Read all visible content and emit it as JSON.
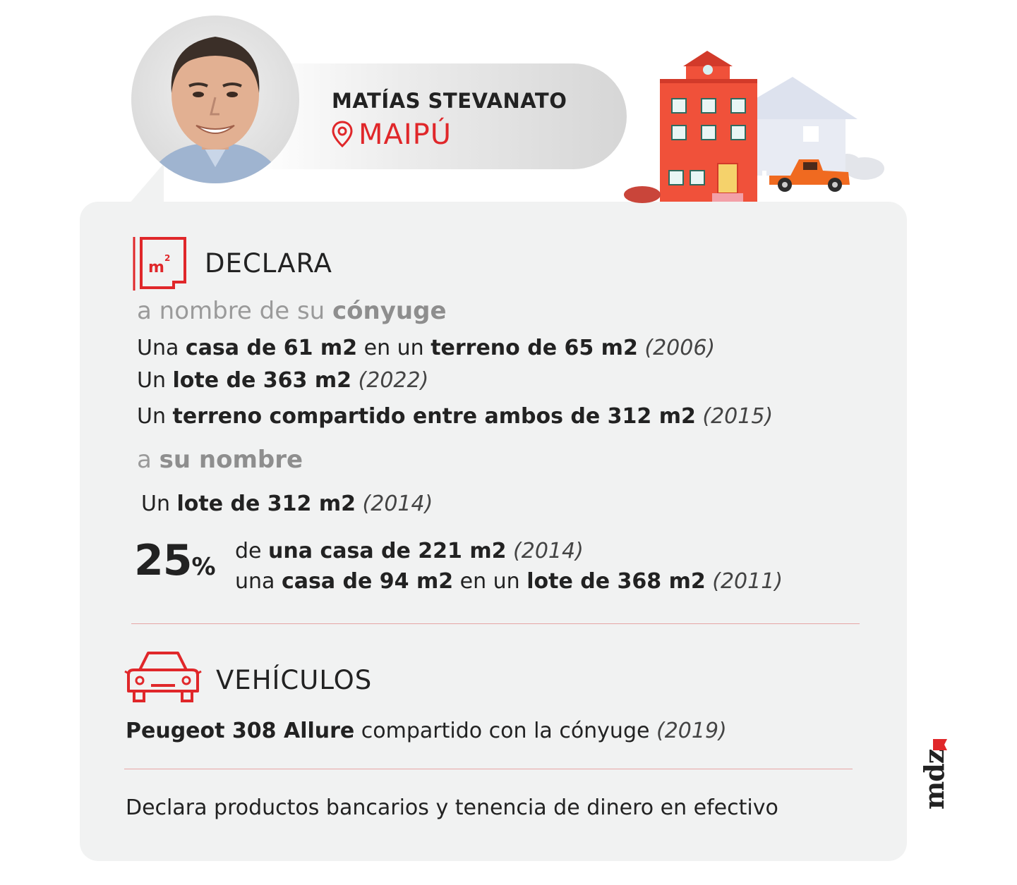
{
  "header": {
    "name": "MATÍAS STEVANATO",
    "place": "MAIPÚ",
    "pin_icon": "location-pin-icon"
  },
  "colors": {
    "accent": "#e0272a",
    "card": "#f1f2f2",
    "house": "#f0513a",
    "car": "#f06a20"
  },
  "declara": {
    "title": "DECLARA",
    "icon_label": "m²",
    "conyuge_prefix": "a nombre de su ",
    "conyuge_bold": "cónyuge",
    "conyuge_items": [
      {
        "p1": "Una ",
        "b1": "casa de 61 m2",
        "p2": " en un ",
        "b2": "terreno de 65 m2",
        "year": " (2006)"
      },
      {
        "p1": "Un ",
        "b1": "lote de 363 m2",
        "year": " (2022)"
      },
      {
        "p1": "Un ",
        "b1": "terreno compartido entre ambos de 312 m2",
        "year": " (2015)"
      }
    ],
    "propio_prefix": "a ",
    "propio_bold": "su nombre",
    "propio_item": {
      "p1": "Un ",
      "b1": "lote de 312 m2",
      "year": " (2014)"
    },
    "share": {
      "number": "25",
      "unit": "%",
      "line1": {
        "p1": "de ",
        "b1": "una casa de 221 m2",
        "year": " (2014)"
      },
      "line2": {
        "p1": "una ",
        "b1": "casa de 94 m2",
        "p2": " en un ",
        "b2": "lote de 368 m2",
        "year": " (2011)"
      }
    }
  },
  "vehiculos": {
    "title": "VEHÍCULOS",
    "b1": "Peugeot 308 Allure",
    "p1": " compartido con la cónyuge",
    "year": " (2019)"
  },
  "footer_note": "Declara productos bancarios y tenencia de dinero en efectivo",
  "logo": "mdz"
}
